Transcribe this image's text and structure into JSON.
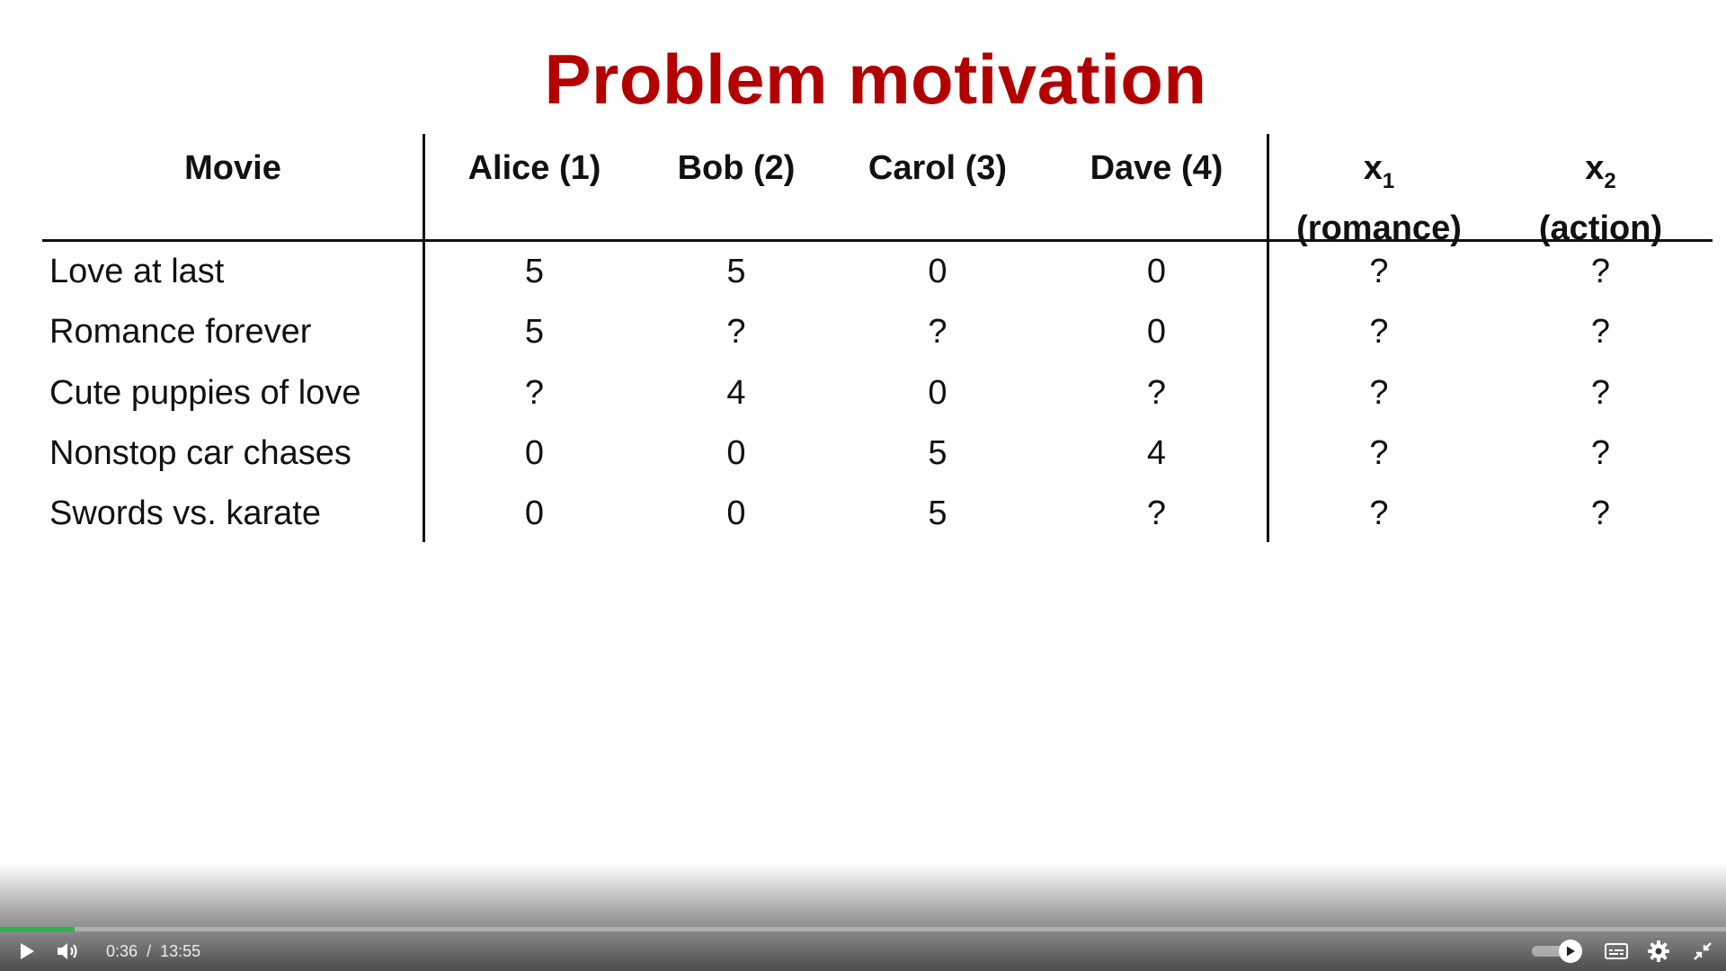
{
  "slide": {
    "title": "Problem motivation",
    "title_color": "#b20000"
  },
  "table": {
    "headers": [
      {
        "main": "Movie"
      },
      {
        "main": "Alice (1)"
      },
      {
        "main": "Bob (2)"
      },
      {
        "main": "Carol (3)"
      },
      {
        "main": "Dave (4)"
      },
      {
        "main": "x",
        "sub": "1",
        "second": "(romance)"
      },
      {
        "main": "x",
        "sub": "2",
        "second": "(action)"
      }
    ],
    "rows": [
      {
        "movie": "Love at last",
        "values": [
          "5",
          "5",
          "0",
          "0",
          "?",
          "?"
        ]
      },
      {
        "movie": "Romance forever",
        "values": [
          "5",
          "?",
          "?",
          "0",
          "?",
          "?"
        ]
      },
      {
        "movie": "Cute puppies of love",
        "values": [
          "?",
          "4",
          "0",
          "?",
          "?",
          "?"
        ]
      },
      {
        "movie": "Nonstop car chases",
        "values": [
          "0",
          "0",
          "5",
          "4",
          "?",
          "?"
        ]
      },
      {
        "movie": "Swords vs. karate",
        "values": [
          "0",
          "0",
          "5",
          "?",
          "?",
          "?"
        ]
      }
    ]
  },
  "player": {
    "current_time": "0:36",
    "separator": "/",
    "duration": "13:55",
    "progress_fraction": 0.043,
    "progress_color": "#2bb24c",
    "icons": {
      "play": "play-icon",
      "volume": "volume-icon",
      "autoplay": "autoplay-toggle-icon",
      "captions": "captions-icon",
      "settings": "gear-icon",
      "exit_fullscreen": "exit-fullscreen-icon"
    }
  }
}
